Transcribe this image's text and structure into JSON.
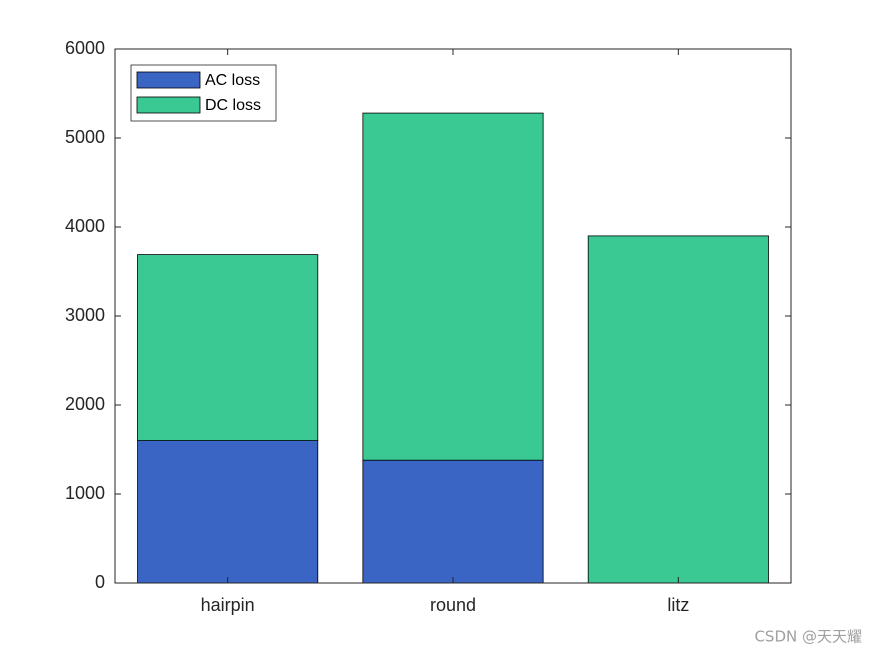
{
  "chart_data": {
    "type": "bar",
    "stacked": true,
    "categories": [
      "hairpin",
      "round",
      "litz"
    ],
    "series": [
      {
        "name": "AC loss",
        "color": "#3a65c4",
        "values": [
          1600,
          1380,
          0
        ]
      },
      {
        "name": "DC loss",
        "color": "#3ac993",
        "values": [
          2090,
          3900,
          3900
        ]
      }
    ],
    "ylim": [
      0,
      6000
    ],
    "yticks": [
      0,
      1000,
      2000,
      3000,
      4000,
      5000,
      6000
    ],
    "grid": false,
    "legend": "upper left",
    "watermark": "CSDN @天天耀"
  }
}
